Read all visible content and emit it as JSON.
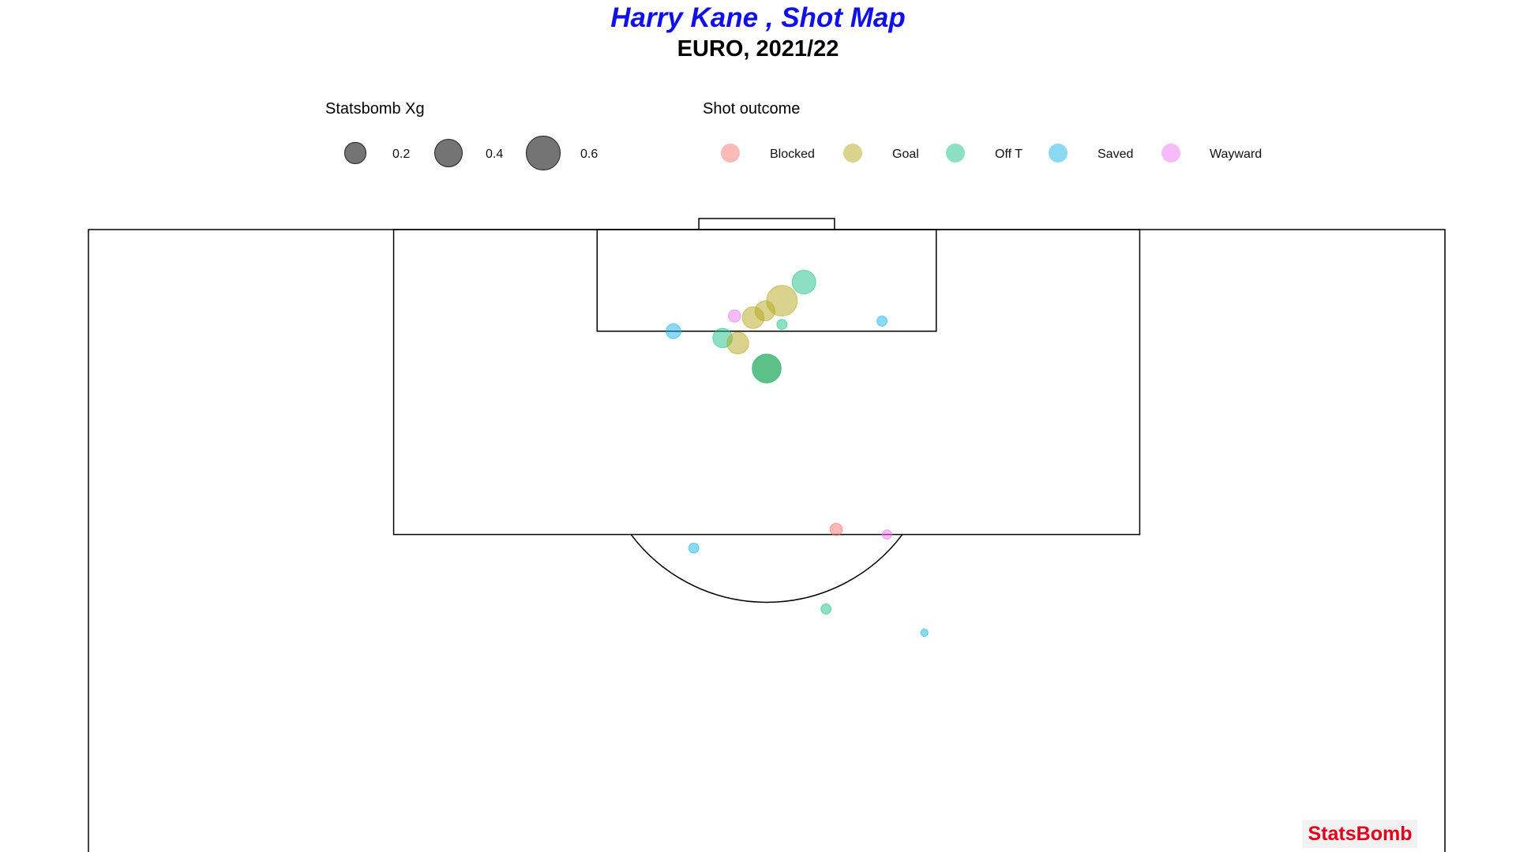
{
  "chart_data": {
    "type": "scatter",
    "title": "Harry Kane , Shot Map",
    "subtitle": "EURO, 2021/22",
    "size_legend": {
      "title": "Statsbomb Xg",
      "entries": [
        {
          "label": "0.2",
          "value": 0.2
        },
        {
          "label": "0.4",
          "value": 0.4
        },
        {
          "label": "0.6",
          "value": 0.6
        }
      ]
    },
    "color_legend": {
      "title": "Shot outcome",
      "entries": [
        {
          "label": "Blocked",
          "color": "#f8766d"
        },
        {
          "label": "Goal",
          "color": "#b4a81c"
        },
        {
          "label": "Off T",
          "color": "#1ec28a"
        },
        {
          "label": "Saved",
          "color": "#17b4ec"
        },
        {
          "label": "Wayward",
          "color": "#ef79ef"
        }
      ]
    },
    "pitch": {
      "x_range": [
        80,
        120
      ],
      "y_range": [
        0,
        80
      ],
      "orientation": "vertical-attacking-up"
    },
    "shots": [
      {
        "x": 116.9,
        "y": 42.2,
        "xg": 0.25,
        "outcome": "Off T"
      },
      {
        "x": 115.8,
        "y": 40.9,
        "xg": 0.47,
        "outcome": "Goal"
      },
      {
        "x": 115.2,
        "y": 39.9,
        "xg": 0.16,
        "outcome": "Goal"
      },
      {
        "x": 114.8,
        "y": 39.2,
        "xg": 0.2,
        "outcome": "Goal"
      },
      {
        "x": 114.9,
        "y": 38.1,
        "xg": 0.04,
        "outcome": "Wayward"
      },
      {
        "x": 114.4,
        "y": 40.9,
        "xg": 0.02,
        "outcome": "Off T"
      },
      {
        "x": 114.6,
        "y": 46.8,
        "xg": 0.02,
        "outcome": "Saved"
      },
      {
        "x": 114.0,
        "y": 34.5,
        "xg": 0.07,
        "outcome": "Saved"
      },
      {
        "x": 113.6,
        "y": 37.4,
        "xg": 0.15,
        "outcome": "Off T"
      },
      {
        "x": 113.3,
        "y": 38.3,
        "xg": 0.2,
        "outcome": "Goal"
      },
      {
        "x": 111.8,
        "y": 40.0,
        "xg": 0.4,
        "outcome": "Saved"
      },
      {
        "x": 111.8,
        "y": 40.0,
        "xg": 0.4,
        "outcome": "Goal"
      },
      {
        "x": 111.8,
        "y": 40.0,
        "xg": 0.4,
        "outcome": "Off T"
      },
      {
        "x": 102.3,
        "y": 44.1,
        "xg": 0.04,
        "outcome": "Blocked"
      },
      {
        "x": 102.0,
        "y": 47.1,
        "xg": 0.015,
        "outcome": "Wayward"
      },
      {
        "x": 101.2,
        "y": 35.7,
        "xg": 0.02,
        "outcome": "Saved"
      },
      {
        "x": 97.6,
        "y": 43.5,
        "xg": 0.02,
        "outcome": "Off T"
      },
      {
        "x": 96.2,
        "y": 49.3,
        "xg": 0.005,
        "outcome": "Saved"
      }
    ]
  },
  "branding": {
    "logo_text": "StatsBomb"
  }
}
